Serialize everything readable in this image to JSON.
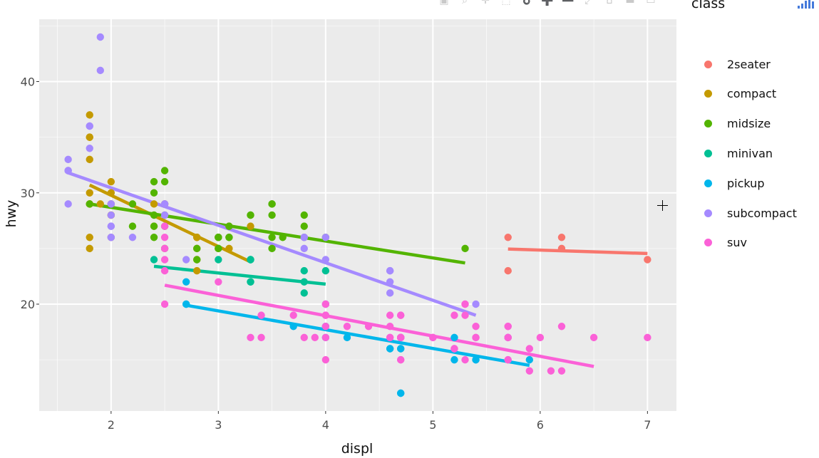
{
  "modebar": {
    "buttons": [
      {
        "name": "camera-icon",
        "glyph": "▣"
      },
      {
        "name": "zoom-icon",
        "glyph": "⌕"
      },
      {
        "name": "pan-icon",
        "glyph": "✛"
      },
      {
        "name": "box-select-icon",
        "glyph": "⬚"
      },
      {
        "name": "lasso-icon",
        "glyph": "➰"
      },
      {
        "name": "zoom-in-icon",
        "glyph": "➕"
      },
      {
        "name": "zoom-out-icon",
        "glyph": "➖"
      },
      {
        "name": "autoscale-icon",
        "glyph": "⤢"
      },
      {
        "name": "home-icon",
        "glyph": "⌂"
      },
      {
        "name": "spike-lines-icon",
        "glyph": "▬"
      },
      {
        "name": "compare-hover-icon",
        "glyph": "▭"
      }
    ]
  },
  "colors": {
    "panel_bg": "#ebebeb",
    "grid": "#ffffff",
    "axis_text": "#4d4d4d",
    "title_text": "#111111"
  },
  "chart_data": {
    "type": "scatter",
    "title": "",
    "xlabel": "displ",
    "ylabel": "hwy",
    "xlim": [
      1.33,
      7.27
    ],
    "ylim": [
      10.4,
      45.6
    ],
    "x_ticks": [
      2,
      3,
      4,
      5,
      6,
      7
    ],
    "y_ticks": [
      20,
      30,
      40
    ],
    "grid": true,
    "legend": {
      "title": "class",
      "position": "right"
    },
    "series": [
      {
        "name": "2seater",
        "color": "#F8766D",
        "points": [
          [
            5.7,
            26
          ],
          [
            5.7,
            23
          ],
          [
            6.2,
            26
          ],
          [
            6.2,
            25
          ],
          [
            7.0,
            24
          ]
        ],
        "trend": [
          [
            5.7,
            24.95
          ],
          [
            7.0,
            24.55
          ]
        ]
      },
      {
        "name": "compact",
        "color": "#C49A00",
        "points": [
          [
            1.8,
            29
          ],
          [
            1.8,
            29
          ],
          [
            2.0,
            31
          ],
          [
            2.0,
            30
          ],
          [
            2.8,
            26
          ],
          [
            2.8,
            26
          ],
          [
            3.1,
            27
          ],
          [
            1.8,
            26
          ],
          [
            1.8,
            25
          ],
          [
            2.0,
            28
          ],
          [
            2.0,
            28
          ],
          [
            2.8,
            25
          ],
          [
            2.8,
            24
          ],
          [
            3.1,
            25
          ],
          [
            2.4,
            29
          ],
          [
            2.4,
            27
          ],
          [
            3.0,
            26
          ],
          [
            3.3,
            27
          ],
          [
            1.8,
            33
          ],
          [
            1.8,
            35
          ],
          [
            1.8,
            37
          ],
          [
            1.8,
            35
          ],
          [
            1.8,
            30
          ],
          [
            2.0,
            29
          ],
          [
            2.0,
            26
          ],
          [
            2.5,
            29
          ],
          [
            2.8,
            23
          ],
          [
            2.8,
            26
          ],
          [
            1.9,
            29
          ],
          [
            2.0,
            29
          ],
          [
            2.5,
            29
          ]
        ],
        "trend": [
          [
            1.8,
            30.7
          ],
          [
            3.3,
            23.8
          ]
        ]
      },
      {
        "name": "midsize",
        "color": "#53B400",
        "points": [
          [
            2.4,
            27
          ],
          [
            2.4,
            30
          ],
          [
            3.1,
            26
          ],
          [
            3.5,
            29
          ],
          [
            3.6,
            26
          ],
          [
            2.4,
            31
          ],
          [
            3.0,
            26
          ],
          [
            3.3,
            28
          ],
          [
            3.8,
            26
          ],
          [
            3.8,
            28
          ],
          [
            3.8,
            27
          ],
          [
            4.0,
            26
          ],
          [
            5.3,
            25
          ],
          [
            2.5,
            32
          ],
          [
            2.5,
            31
          ],
          [
            2.2,
            27
          ],
          [
            2.2,
            29
          ],
          [
            2.4,
            26
          ],
          [
            2.4,
            28
          ],
          [
            3.0,
            26
          ],
          [
            3.0,
            25
          ],
          [
            3.5,
            28
          ],
          [
            3.5,
            26
          ],
          [
            3.5,
            29
          ],
          [
            3.5,
            25
          ],
          [
            3.1,
            26
          ],
          [
            3.1,
            27
          ],
          [
            2.5,
            27
          ],
          [
            2.5,
            25
          ],
          [
            2.8,
            24
          ],
          [
            2.8,
            25
          ],
          [
            3.0,
            26
          ],
          [
            3.0,
            25
          ],
          [
            3.3,
            28
          ],
          [
            1.8,
            29
          ],
          [
            2.5,
            28
          ]
        ],
        "trend": [
          [
            1.8,
            29.0
          ],
          [
            5.3,
            23.7
          ]
        ]
      },
      {
        "name": "minivan",
        "color": "#00C094",
        "points": [
          [
            2.4,
            24
          ],
          [
            3.0,
            24
          ],
          [
            3.3,
            22
          ],
          [
            3.3,
            22
          ],
          [
            3.3,
            24
          ],
          [
            3.3,
            24
          ],
          [
            3.3,
            24
          ],
          [
            3.8,
            22
          ],
          [
            3.8,
            21
          ],
          [
            3.8,
            23
          ],
          [
            4.0,
            23
          ]
        ],
        "trend": [
          [
            2.4,
            23.4
          ],
          [
            4.0,
            21.8
          ]
        ]
      },
      {
        "name": "pickup",
        "color": "#00B6EB",
        "points": [
          [
            2.7,
            20
          ],
          [
            2.7,
            22
          ],
          [
            2.7,
            20
          ],
          [
            3.7,
            18
          ],
          [
            4.0,
            18
          ],
          [
            4.7,
            16
          ],
          [
            4.7,
            17
          ],
          [
            4.7,
            16
          ],
          [
            5.2,
            15
          ],
          [
            5.2,
            17
          ],
          [
            5.7,
            17
          ],
          [
            5.9,
            15
          ],
          [
            4.6,
            16
          ],
          [
            5.4,
            15
          ],
          [
            5.4,
            15
          ],
          [
            4.0,
            20
          ],
          [
            4.0,
            17
          ],
          [
            4.2,
            17
          ],
          [
            4.6,
            16
          ],
          [
            4.7,
            12
          ],
          [
            4.7,
            12
          ]
        ],
        "trend": [
          [
            2.7,
            19.9
          ],
          [
            5.9,
            14.5
          ]
        ]
      },
      {
        "name": "subcompact",
        "color": "#A58AFF",
        "points": [
          [
            1.6,
            33
          ],
          [
            1.6,
            32
          ],
          [
            1.6,
            32
          ],
          [
            1.6,
            29
          ],
          [
            1.6,
            32
          ],
          [
            1.8,
            34
          ],
          [
            1.8,
            36
          ],
          [
            1.8,
            36
          ],
          [
            2.0,
            29
          ],
          [
            2.0,
            26
          ],
          [
            2.0,
            27
          ],
          [
            2.0,
            27
          ],
          [
            2.2,
            26
          ],
          [
            2.5,
            29
          ],
          [
            2.7,
            24
          ],
          [
            3.8,
            26
          ],
          [
            3.8,
            25
          ],
          [
            3.8,
            26
          ],
          [
            4.0,
            24
          ],
          [
            4.6,
            21
          ],
          [
            4.6,
            22
          ],
          [
            4.6,
            23
          ],
          [
            5.4,
            20
          ],
          [
            1.9,
            44
          ],
          [
            1.9,
            41
          ],
          [
            2.0,
            29
          ],
          [
            2.0,
            26
          ],
          [
            2.5,
            28
          ],
          [
            2.5,
            29
          ],
          [
            4.0,
            26
          ],
          [
            4.6,
            23
          ],
          [
            2.0,
            28
          ]
        ],
        "trend": [
          [
            1.6,
            31.8
          ],
          [
            5.4,
            19.0
          ]
        ]
      },
      {
        "name": "suv",
        "color": "#FB61D7",
        "points": [
          [
            5.3,
            20
          ],
          [
            5.3,
            15
          ],
          [
            5.3,
            20
          ],
          [
            5.7,
            17
          ],
          [
            6.0,
            17
          ],
          [
            5.7,
            17
          ],
          [
            5.7,
            15
          ],
          [
            6.2,
            18
          ],
          [
            6.2,
            14
          ],
          [
            7.0,
            17
          ],
          [
            5.3,
            19
          ],
          [
            5.7,
            17
          ],
          [
            6.5,
            17
          ],
          [
            3.3,
            17
          ],
          [
            3.8,
            17
          ],
          [
            4.7,
            17
          ],
          [
            4.7,
            15
          ],
          [
            4.7,
            17
          ],
          [
            5.2,
            19
          ],
          [
            5.7,
            18
          ],
          [
            5.9,
            16
          ],
          [
            4.7,
            17
          ],
          [
            4.7,
            17
          ],
          [
            4.7,
            19
          ],
          [
            5.2,
            16
          ],
          [
            5.7,
            15
          ],
          [
            5.9,
            14
          ],
          [
            3.4,
            17
          ],
          [
            4.0,
            19
          ],
          [
            4.0,
            20
          ],
          [
            4.7,
            17
          ],
          [
            4.7,
            17
          ],
          [
            4.0,
            17
          ],
          [
            4.0,
            15
          ],
          [
            4.6,
            17
          ],
          [
            5.0,
            17
          ],
          [
            4.2,
            18
          ],
          [
            4.4,
            18
          ],
          [
            4.6,
            19
          ],
          [
            5.4,
            18
          ],
          [
            5.4,
            17
          ],
          [
            5.4,
            17
          ],
          [
            4.0,
            18
          ],
          [
            4.0,
            19
          ],
          [
            4.6,
            18
          ],
          [
            5.0,
            17
          ],
          [
            3.7,
            19
          ],
          [
            3.9,
            17
          ],
          [
            4.7,
            19
          ],
          [
            4.7,
            15
          ],
          [
            4.7,
            17
          ],
          [
            5.7,
            18
          ],
          [
            6.1,
            14
          ],
          [
            2.5,
            24
          ],
          [
            2.5,
            25
          ],
          [
            2.5,
            26
          ],
          [
            2.5,
            23
          ],
          [
            2.5,
            27
          ],
          [
            2.5,
            20
          ],
          [
            3.0,
            22
          ],
          [
            3.4,
            19
          ],
          [
            4.0,
            20
          ],
          [
            4.6,
            17
          ],
          [
            5.2,
            16
          ]
        ],
        "trend": [
          [
            2.5,
            21.7
          ],
          [
            6.5,
            14.4
          ]
        ]
      }
    ]
  }
}
